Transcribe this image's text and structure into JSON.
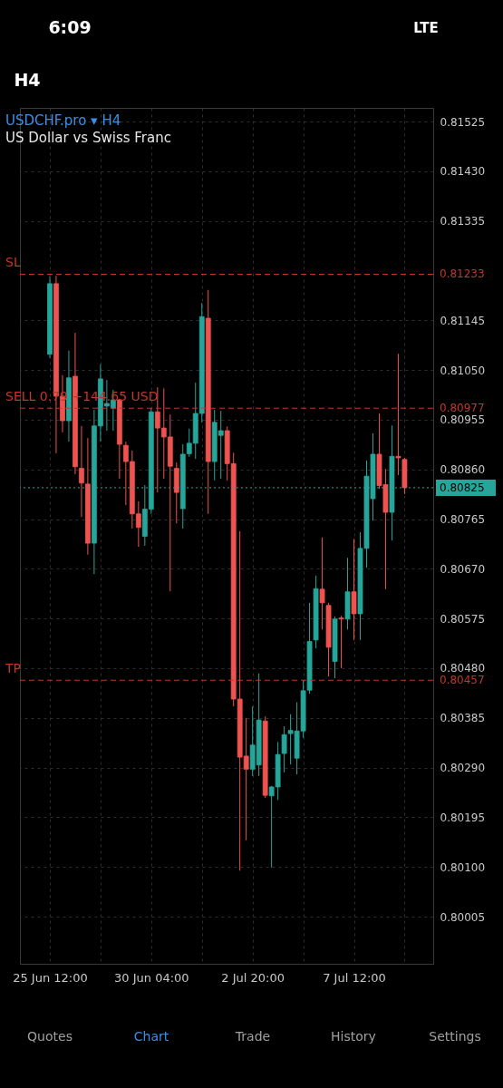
{
  "chart_data": {
    "type": "candlestick",
    "title": "USDCHF.pro ▾ H4",
    "subtitle": "US Dollar vs Swiss Franc",
    "categories": [
      "25 Jun 12:00",
      null,
      null,
      null,
      null,
      null,
      null,
      null,
      null,
      null,
      null,
      null,
      null,
      null,
      null,
      null,
      "30 Jun 04:00",
      null,
      null,
      null,
      null,
      null,
      null,
      null,
      null,
      null,
      null,
      null,
      null,
      null,
      null,
      null,
      "2 Jul 20:00",
      null,
      null,
      null,
      null,
      null,
      null,
      null,
      null,
      null,
      null,
      null,
      null,
      null,
      null,
      null,
      "7 Jul 12:00",
      null,
      null,
      null,
      null,
      null,
      null,
      null,
      null
    ],
    "ohlc": [
      [
        0.8108,
        0.81229,
        0.81073,
        0.81215
      ],
      [
        0.81215,
        0.8123,
        0.80891,
        0.81
      ],
      [
        0.81,
        0.8104,
        0.80931,
        0.80953
      ],
      [
        0.80953,
        0.81087,
        0.80913,
        0.81035
      ],
      [
        0.81038,
        0.81121,
        0.80851,
        0.80865
      ],
      [
        0.80862,
        0.80943,
        0.80769,
        0.80834
      ],
      [
        0.80832,
        0.8092,
        0.80697,
        0.80719
      ],
      [
        0.80719,
        0.80974,
        0.8066,
        0.80943
      ],
      [
        0.80943,
        0.81061,
        0.80913,
        0.81033
      ],
      [
        0.80981,
        0.81031,
        0.80934,
        0.80986
      ],
      [
        0.80977,
        0.81012,
        0.80934,
        0.80993
      ],
      [
        0.80993,
        0.80995,
        0.80842,
        0.80908
      ],
      [
        0.80906,
        0.80913,
        0.80792,
        0.80875
      ],
      [
        0.80875,
        0.80896,
        0.80747,
        0.80775
      ],
      [
        0.80775,
        0.80799,
        0.80712,
        0.80749
      ],
      [
        0.80732,
        0.8083,
        0.80714,
        0.80784
      ],
      [
        0.80784,
        0.80977,
        0.80775,
        0.8097
      ],
      [
        0.8097,
        0.81017,
        0.80816,
        0.80939
      ],
      [
        0.80939,
        0.81015,
        0.80842,
        0.80922
      ],
      [
        0.80922,
        0.80965,
        0.80627,
        0.80866
      ],
      [
        0.80862,
        0.80873,
        0.80757,
        0.80816
      ],
      [
        0.80785,
        0.80908,
        0.80747,
        0.80889
      ],
      [
        0.8089,
        0.80938,
        0.80884,
        0.8091
      ],
      [
        0.8091,
        0.81026,
        0.8088,
        0.80967
      ],
      [
        0.80967,
        0.81178,
        0.8095,
        0.81152
      ],
      [
        0.81149,
        0.81203,
        0.80775,
        0.80875
      ],
      [
        0.80875,
        0.80974,
        0.80839,
        0.8095
      ],
      [
        0.80925,
        0.80972,
        0.80842,
        0.80934
      ],
      [
        0.80934,
        0.80942,
        0.80839,
        0.80871
      ],
      [
        0.80871,
        0.80892,
        0.80407,
        0.80421
      ],
      [
        0.80421,
        0.80742,
        0.80093,
        0.8031
      ],
      [
        0.80312,
        0.80385,
        0.80151,
        0.80287
      ],
      [
        0.80287,
        0.80407,
        0.80274,
        0.80333
      ],
      [
        0.80295,
        0.8047,
        0.80274,
        0.80381
      ],
      [
        0.80379,
        0.80388,
        0.80232,
        0.80237
      ],
      [
        0.80236,
        0.80255,
        0.80099,
        0.80253
      ],
      [
        0.80253,
        0.80339,
        0.80228,
        0.80315
      ],
      [
        0.80317,
        0.80369,
        0.80281,
        0.80353
      ],
      [
        0.80355,
        0.80392,
        0.80296,
        0.80361
      ],
      [
        0.80308,
        0.80415,
        0.80277,
        0.8036
      ],
      [
        0.8036,
        0.80457,
        0.80347,
        0.80437
      ],
      [
        0.80438,
        0.80605,
        0.80431,
        0.80531
      ],
      [
        0.80534,
        0.80657,
        0.80518,
        0.80632
      ],
      [
        0.80631,
        0.8073,
        0.80554,
        0.80605
      ],
      [
        0.806,
        0.80605,
        0.80464,
        0.8052
      ],
      [
        0.80493,
        0.80579,
        0.80461,
        0.80574
      ],
      [
        0.80576,
        0.8058,
        0.8048,
        0.80574
      ],
      [
        0.80574,
        0.80691,
        0.80554,
        0.80626
      ],
      [
        0.80626,
        0.80727,
        0.80534,
        0.80584
      ],
      [
        0.80584,
        0.8074,
        0.80534,
        0.80709
      ],
      [
        0.80709,
        0.80877,
        0.80672,
        0.80847
      ],
      [
        0.80804,
        0.80929,
        0.80762,
        0.80889
      ],
      [
        0.80889,
        0.80967,
        0.80823,
        0.80829
      ],
      [
        0.80831,
        0.80861,
        0.80631,
        0.80778
      ],
      [
        0.80778,
        0.80944,
        0.80724,
        0.80885
      ],
      [
        0.80885,
        0.81081,
        0.80849,
        0.80882
      ],
      [
        0.80879,
        0.80882,
        0.80813,
        0.80825
      ]
    ],
    "colors": [
      "#26a69a",
      "#ef5350",
      "#ef5350",
      "#26a69a",
      "#ef5350",
      "#ef5350",
      "#ef5350",
      "#26a69a",
      "#26a69a",
      "#26a69a",
      "#26a69a",
      "#ef5350",
      "#ef5350",
      "#ef5350",
      "#ef5350",
      "#26a69a",
      "#26a69a",
      "#ef5350",
      "#ef5350",
      "#ef5350",
      "#ef5350",
      "#26a69a",
      "#26a69a",
      "#26a69a",
      "#26a69a",
      "#ef5350",
      "#26a69a",
      "#26a69a",
      "#ef5350",
      "#ef5350",
      "#ef5350",
      "#ef5350",
      "#26a69a",
      "#26a69a",
      "#ef5350",
      "#26a69a",
      "#26a69a",
      "#26a69a",
      "#26a69a",
      "#26a69a",
      "#26a69a",
      "#26a69a",
      "#26a69a",
      "#ef5350",
      "#ef5350",
      "#26a69a",
      "#ef5350",
      "#26a69a",
      "#ef5350",
      "#26a69a",
      "#26a69a",
      "#26a69a",
      "#ef5350",
      "#ef5350",
      "#26a69a",
      "#ef5350",
      "#ef5350"
    ],
    "ylim": [
      0.79915,
      0.81551
    ],
    "yticks": [
      0.81525,
      {
        "value": 0.8143,
        "label": "0.81430"
      },
      0.81335,
      0.81145,
      {
        "value": 0.8105,
        "label": "0.81050"
      },
      0.80955,
      {
        "value": 0.8086,
        "label": "0.80860"
      },
      0.80765,
      {
        "value": 0.8067,
        "label": "0.80670"
      },
      0.80575,
      {
        "value": 0.8048,
        "label": "0.80480"
      },
      0.80385,
      {
        "value": 0.8029,
        "label": "0.80290"
      },
      0.80195,
      {
        "value": 0.801,
        "label": "0.80100"
      },
      0.80005
    ],
    "grid": true,
    "ref_lines": [
      {
        "axis": "y",
        "value": 0.81233,
        "label": "SL",
        "color": "#c0392b",
        "line_style": "dashed"
      },
      {
        "axis": "y",
        "value": 0.80977,
        "label": "SELL 0.79 +144.65 USD",
        "color": "#c0392b",
        "line_style": "dashed"
      },
      {
        "axis": "y",
        "value": 0.80825,
        "color": "#26a69a",
        "line_style": "dotted"
      },
      {
        "axis": "y",
        "value": 0.80457,
        "label": "TP",
        "color": "#c0392b",
        "line_style": "dashed"
      }
    ],
    "annotations": [
      "6:09",
      "LTE",
      "H4",
      "Quotes",
      "Chart",
      "Trade",
      "History",
      "Settings",
      "0.81233",
      "0.80977",
      "0.80825",
      "0.80457"
    ]
  }
}
